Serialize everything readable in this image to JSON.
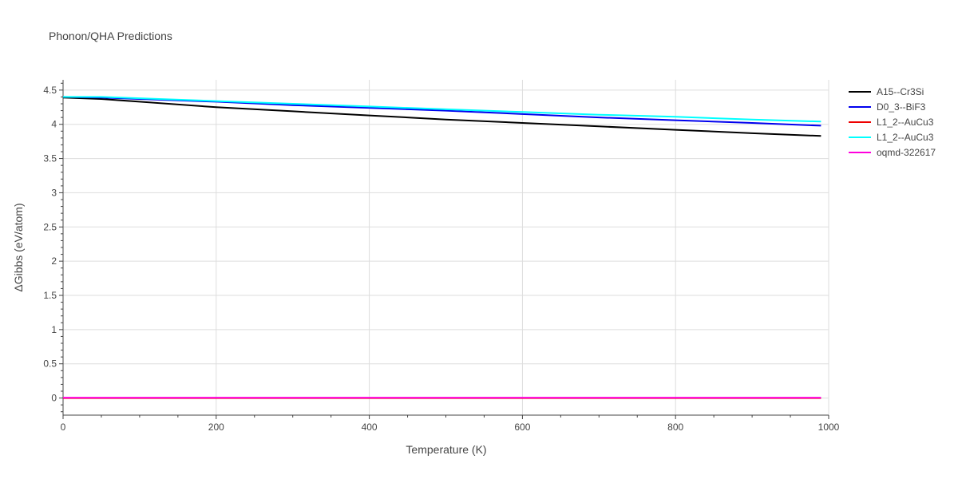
{
  "chart_data": {
    "type": "line",
    "title": "Phonon/QHA Predictions",
    "xlabel": "Temperature (K)",
    "ylabel": "ΔGibbs (eV/atom)",
    "xlim": [
      0,
      1000
    ],
    "ylim": [
      -0.25,
      4.65
    ],
    "x_ticks": [
      0,
      200,
      400,
      600,
      800,
      1000
    ],
    "x_tick_labels": [
      "0",
      "200",
      "400",
      "600",
      "800",
      "1000"
    ],
    "y_ticks": [
      0,
      0.5,
      1,
      1.5,
      2,
      2.5,
      3,
      3.5,
      4,
      4.5
    ],
    "y_tick_labels": [
      "0",
      "0.5",
      "1",
      "1.5",
      "2",
      "2.5",
      "3",
      "3.5",
      "4",
      "4.5"
    ],
    "grid": true,
    "legend_position": "top-right",
    "series": [
      {
        "name": "A15--Cr3Si",
        "color": "#000000",
        "x": [
          0,
          50,
          100,
          200,
          300,
          400,
          500,
          600,
          700,
          800,
          900,
          990
        ],
        "y": [
          4.39,
          4.37,
          4.33,
          4.25,
          4.19,
          4.13,
          4.07,
          4.02,
          3.97,
          3.92,
          3.87,
          3.83
        ]
      },
      {
        "name": "D0_3--BiF3",
        "color": "#0000ee",
        "x": [
          0,
          50,
          100,
          200,
          300,
          400,
          500,
          600,
          700,
          800,
          900,
          990
        ],
        "y": [
          4.4,
          4.39,
          4.37,
          4.33,
          4.28,
          4.24,
          4.2,
          4.15,
          4.1,
          4.06,
          4.02,
          3.98
        ]
      },
      {
        "name": "L1_2--AuCu3",
        "color": "#ee0000",
        "x": [
          0,
          990
        ],
        "y": [
          0,
          0
        ]
      },
      {
        "name": "L1_2--AuCu3",
        "color": "#00ffff",
        "x": [
          0,
          50,
          100,
          200,
          300,
          400,
          500,
          600,
          700,
          800,
          900,
          990
        ],
        "y": [
          4.4,
          4.4,
          4.38,
          4.34,
          4.3,
          4.26,
          4.22,
          4.18,
          4.14,
          4.11,
          4.07,
          4.04
        ]
      },
      {
        "name": "oqmd-322617",
        "color": "#ff00dd",
        "x": [
          0,
          990
        ],
        "y": [
          0.005,
          0.005
        ]
      }
    ]
  }
}
